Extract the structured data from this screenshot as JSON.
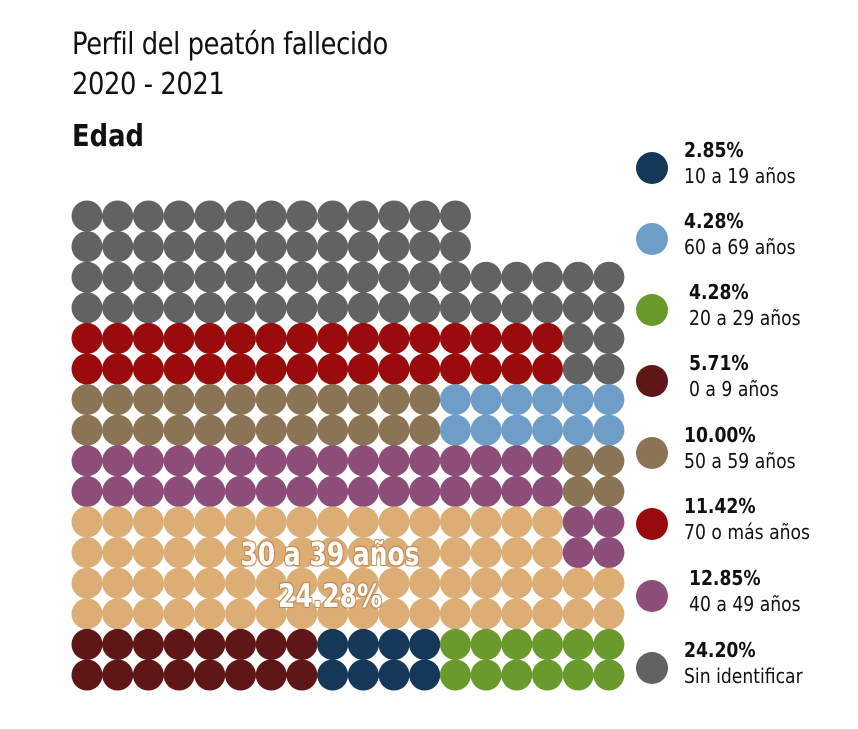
{
  "chart_data": {
    "type": "waffle",
    "title": "Perfil del peatón fallecido",
    "title_line2": "2020 - 2021",
    "subtitle": "Edad",
    "annotation": {
      "line1": "30 a 39 años",
      "line2": "24.28%"
    },
    "series": [
      {
        "name": "10 a 19 años",
        "pct_label": "2.85%",
        "value": 2.85,
        "color": "#163858"
      },
      {
        "name": "60 a 69 años",
        "pct_label": "4.28%",
        "value": 4.28,
        "color": "#6e9ec7"
      },
      {
        "name": "20 a 29 años",
        "pct_label": "4.28%",
        "value": 4.28,
        "color": "#6a9a2c"
      },
      {
        "name": "0 a 9 años",
        "pct_label": "5.71%",
        "value": 5.71,
        "color": "#5e1616"
      },
      {
        "name": "50 a 59 años",
        "pct_label": "10.00%",
        "value": 10.0,
        "color": "#8b7355"
      },
      {
        "name": "70 o más años",
        "pct_label": "11.42%",
        "value": 11.42,
        "color": "#9a0c0c"
      },
      {
        "name": "40 a 49 años",
        "pct_label": "12.85%",
        "value": 12.85,
        "color": "#8c4e78"
      },
      {
        "name": "Sin identificar",
        "pct_label": "24.20%",
        "value": 24.2,
        "color": "#626262"
      },
      {
        "name": "30 a 39 años",
        "pct_label": "24.28%",
        "value": 24.28,
        "color": "#dcad75"
      }
    ],
    "legend_position": "right",
    "grid": false
  }
}
